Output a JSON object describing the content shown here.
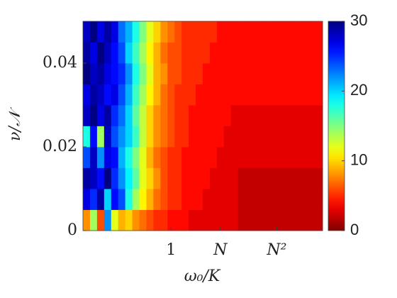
{
  "chart_data": {
    "type": "heatmap",
    "xlabel": "ω₀/K",
    "ylabel": "ν/𝒩",
    "categories": [
      null,
      null,
      null,
      null,
      null,
      null,
      null,
      null,
      null,
      null,
      null,
      null,
      "1",
      null,
      null,
      null,
      null,
      null,
      null,
      "N",
      null,
      null,
      null,
      null,
      null,
      null,
      null,
      "N²",
      null,
      null,
      null,
      null,
      null,
      null
    ],
    "ybins": [
      0,
      0.005,
      0.01,
      0.015,
      0.02,
      0.025,
      0.03,
      0.035,
      0.04,
      0.045,
      0.05
    ],
    "ylim": [
      0,
      0.05
    ],
    "yticks": [
      0,
      0.02,
      0.04
    ],
    "colormap": "jet_r",
    "clim": [
      0,
      30
    ],
    "cticks": [
      0,
      10,
      20,
      30
    ],
    "z": [
      [
        8,
        14,
        6,
        22,
        12,
        9,
        10,
        8,
        7,
        6,
        5,
        5,
        4,
        4,
        4,
        3,
        3,
        3,
        3,
        3,
        3,
        3,
        2,
        2,
        2,
        2,
        2,
        2,
        2,
        2,
        2,
        2,
        2,
        2
      ],
      [
        27,
        25,
        29,
        20,
        26,
        24,
        18,
        14,
        11,
        9,
        7,
        6,
        5,
        5,
        4,
        4,
        4,
        3,
        3,
        3,
        3,
        3,
        2,
        2,
        2,
        2,
        2,
        2,
        2,
        2,
        2,
        2,
        2,
        2
      ],
      [
        29,
        28,
        26,
        30,
        25,
        22,
        19,
        16,
        12,
        10,
        8,
        6,
        5,
        5,
        4,
        4,
        4,
        4,
        3,
        3,
        3,
        3,
        2,
        2,
        2,
        2,
        2,
        2,
        2,
        2,
        2,
        2,
        2,
        2
      ],
      [
        24,
        28,
        22,
        27,
        26,
        21,
        18,
        15,
        12,
        9,
        7,
        6,
        5,
        5,
        4,
        4,
        4,
        4,
        4,
        3,
        3,
        3,
        3,
        3,
        3,
        3,
        3,
        3,
        3,
        3,
        3,
        3,
        3,
        3
      ],
      [
        18,
        26,
        14,
        28,
        24,
        22,
        20,
        17,
        13,
        10,
        8,
        7,
        6,
        5,
        5,
        4,
        4,
        4,
        4,
        4,
        3,
        3,
        3,
        3,
        3,
        3,
        3,
        3,
        3,
        3,
        3,
        3,
        3,
        3
      ],
      [
        28,
        30,
        27,
        29,
        25,
        23,
        20,
        16,
        13,
        10,
        8,
        7,
        6,
        5,
        5,
        4,
        4,
        4,
        4,
        4,
        4,
        3,
        3,
        3,
        3,
        3,
        3,
        3,
        3,
        3,
        3,
        3,
        3,
        3
      ],
      [
        27,
        29,
        28,
        26,
        27,
        24,
        21,
        17,
        14,
        11,
        9,
        7,
        6,
        5,
        5,
        5,
        4,
        4,
        4,
        4,
        4,
        4,
        4,
        4,
        4,
        4,
        4,
        4,
        4,
        4,
        4,
        4,
        4,
        4
      ],
      [
        30,
        28,
        29,
        27,
        26,
        25,
        22,
        18,
        15,
        12,
        9,
        8,
        6,
        6,
        5,
        5,
        5,
        4,
        4,
        4,
        4,
        4,
        4,
        4,
        4,
        4,
        4,
        4,
        4,
        4,
        4,
        4,
        4,
        4
      ],
      [
        29,
        27,
        30,
        28,
        26,
        24,
        20,
        17,
        14,
        11,
        9,
        7,
        6,
        6,
        5,
        5,
        5,
        5,
        4,
        4,
        4,
        4,
        4,
        4,
        4,
        4,
        4,
        4,
        4,
        4,
        4,
        4,
        4,
        4
      ],
      [
        28,
        30,
        27,
        29,
        27,
        23,
        21,
        18,
        15,
        12,
        10,
        8,
        7,
        6,
        5,
        5,
        5,
        5,
        5,
        4,
        4,
        4,
        4,
        4,
        4,
        4,
        4,
        4,
        4,
        4,
        4,
        4,
        4,
        4
      ]
    ]
  }
}
